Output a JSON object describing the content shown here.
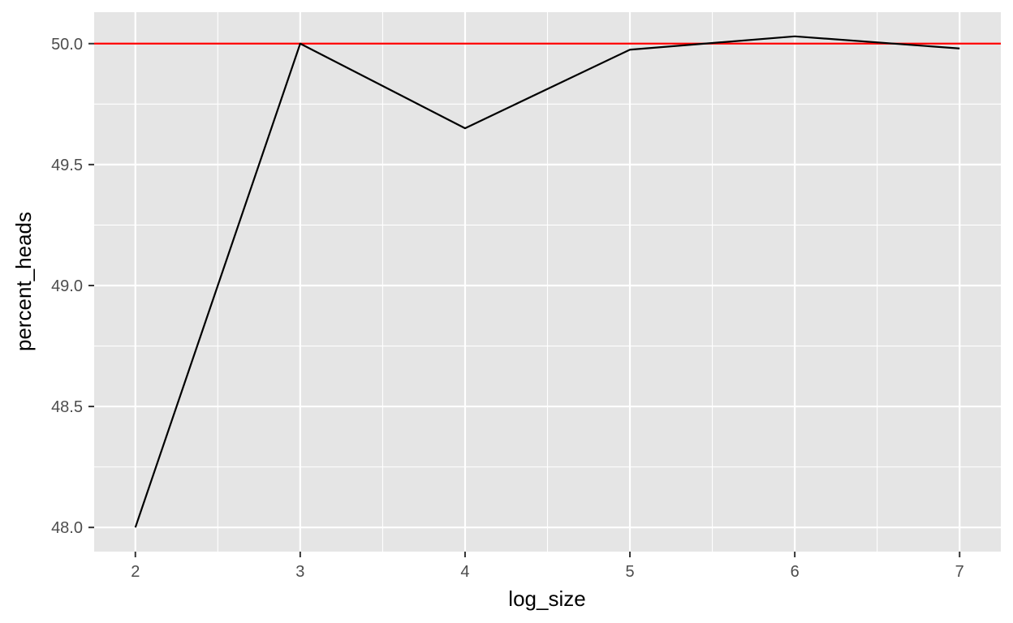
{
  "chart_data": {
    "type": "line",
    "title": "",
    "xlabel": "log_size",
    "ylabel": "percent_heads",
    "x": [
      2,
      3,
      4,
      5,
      6,
      7
    ],
    "series": [
      {
        "values": [
          48.0,
          50.0,
          49.65,
          49.975,
          50.03,
          49.98
        ],
        "color": "#000000"
      }
    ],
    "reference_line": {
      "y": 50.0,
      "color": "#ff0000"
    },
    "xlim": [
      1.75,
      7.25
    ],
    "ylim": [
      47.9,
      50.13
    ],
    "x_ticks": [
      2,
      3,
      4,
      5,
      6,
      7
    ],
    "x_tick_labels": [
      "2",
      "3",
      "4",
      "5",
      "6",
      "7"
    ],
    "y_ticks": [
      48.0,
      48.5,
      49.0,
      49.5,
      50.0
    ],
    "y_tick_labels": [
      "48.0",
      "48.5",
      "49.0",
      "49.5",
      "50.0"
    ],
    "grid": true,
    "panel_background": "#e5e5e5",
    "grid_color": "#ffffff"
  }
}
